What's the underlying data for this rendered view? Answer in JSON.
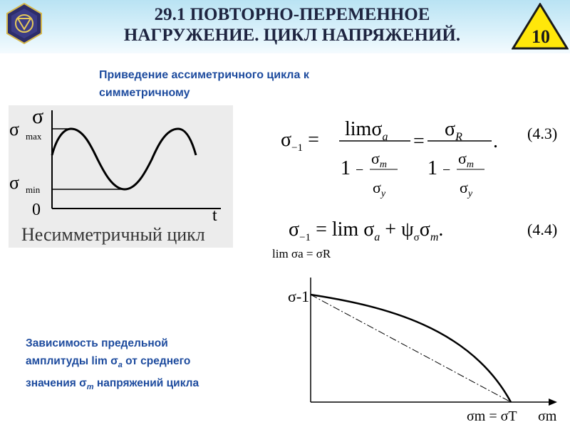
{
  "header": {
    "title_line1": "29.1 ПОВТОРНО-ПЕРЕМЕННОЕ",
    "title_line2": "НАГРУЖЕНИЕ. ЦИКЛ НАПРЯЖЕНИЙ.",
    "slide_number": "10"
  },
  "subtitle": {
    "line1": "Приведение ассиметричного цикла к",
    "line2": "симметричному"
  },
  "cycle_graph": {
    "y_symbol": "σ",
    "max_label_main": "σ",
    "max_label_sub": "max",
    "min_label_main": "σ",
    "min_label_sub": "min",
    "origin_label": "0",
    "x_label": "t",
    "caption": "Несимметричный цикл"
  },
  "equations": {
    "eq1_number": "(4.3)",
    "eq2_number": "(4.4)"
  },
  "amplitude_graph": {
    "top_label": "lim σa = σR",
    "y_point_label": "σ-1",
    "x_point_label": "σm = σT",
    "x_axis_label": "σm"
  },
  "caption2": {
    "line1": "Зависимость предельной",
    "line2_prefix": "амплитуды lim σ",
    "line2_sub": "a",
    "line2_suffix": " от среднего",
    "line3_prefix": "значения σ",
    "line3_sub": "m",
    "line3_suffix": " напряжений цикла"
  },
  "colors": {
    "header_bg": "#c9ebf7",
    "title_text": "#1e2440",
    "blue_text": "#1d4b9e",
    "badge_fill": "#ffe70a",
    "panel_bg": "#ececec"
  }
}
